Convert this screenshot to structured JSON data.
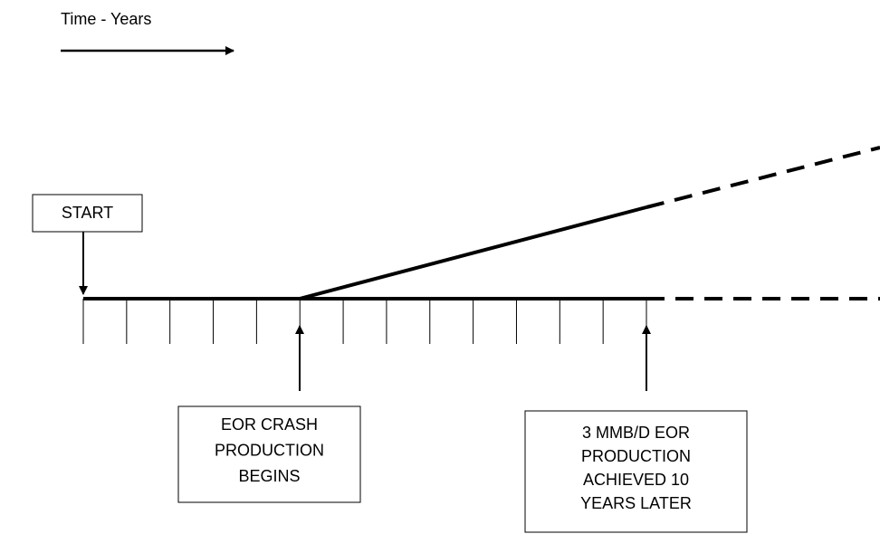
{
  "legend": {
    "text": "Time - Years"
  },
  "start": {
    "label": "START"
  },
  "milestones": [
    {
      "lines": [
        "EOR CRASH",
        "PRODUCTION",
        "BEGINS"
      ]
    },
    {
      "lines": [
        "3 MMB/D EOR",
        "PRODUCTION",
        "ACHIEVED 10",
        "YEARS LATER"
      ]
    }
  ]
}
